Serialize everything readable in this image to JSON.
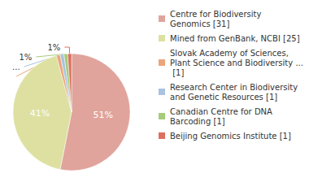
{
  "chart_data": {
    "type": "pie",
    "categories": [
      "Centre for Biodiversity Genomics [31]",
      "Mined from GenBank, NCBI [25]",
      "Slovak Academy of Sciences, Plant Science and Biodiversity ... [1]",
      "Research Center in Biodiversity and Genetic Resources [1]",
      "Canadian Centre for DNA Barcoding [1]",
      "Beijing Genomics Institute [1]"
    ],
    "values": [
      51,
      41,
      1,
      1,
      1,
      1
    ],
    "value_labels": [
      "51%",
      "41%",
      "1%",
      "1%",
      "1%",
      "1%"
    ],
    "colors": [
      "#e0a49c",
      "#dde0a0",
      "#eba57a",
      "#a9c3e0",
      "#a6cc7a",
      "#dd6f5d"
    ],
    "data_labels": true,
    "legend": "right"
  }
}
